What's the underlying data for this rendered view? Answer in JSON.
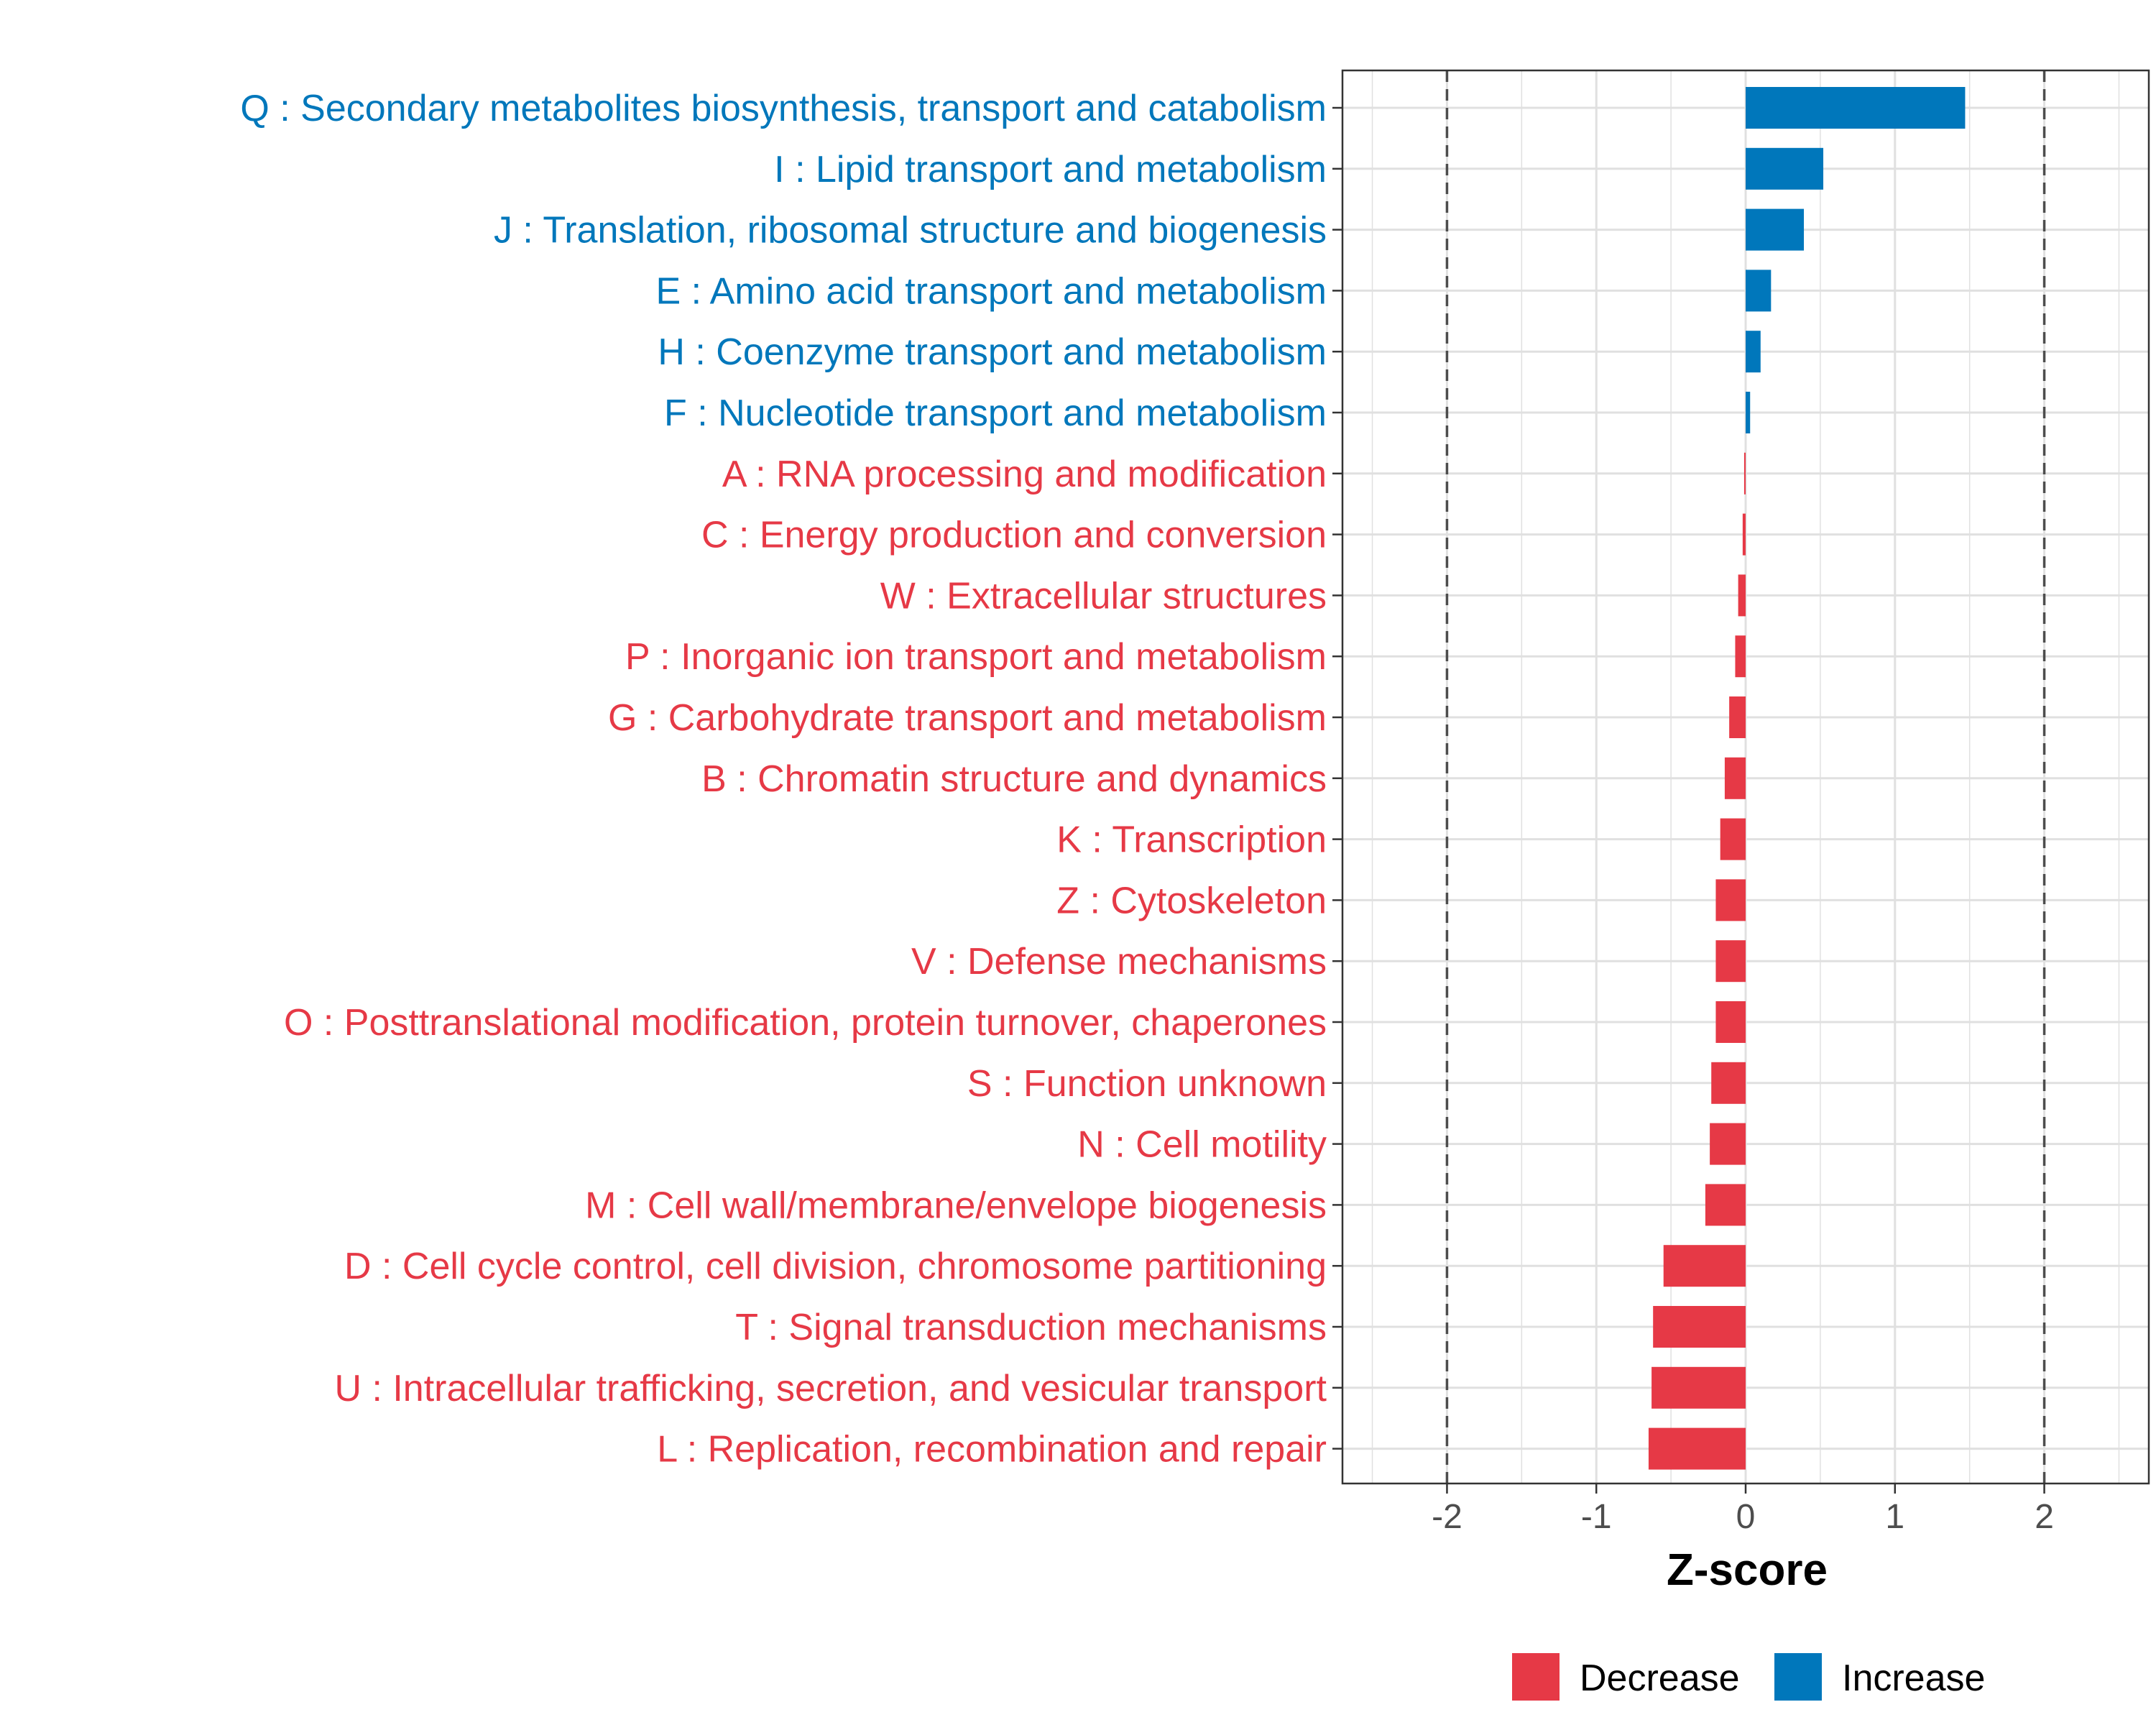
{
  "chart_data": {
    "type": "bar",
    "orientation": "horizontal",
    "title": "",
    "xlabel": "Z-score",
    "ylabel": "",
    "xlim": [
      -2.7,
      2.7
    ],
    "xticks": [
      -2,
      -1,
      0,
      1,
      2
    ],
    "xtick_labels": [
      "-2",
      "-1",
      "0",
      "1",
      "2"
    ],
    "reference_lines": [
      -2,
      2
    ],
    "grid": true,
    "legend_position": "bottom",
    "colors": {
      "Decrease": "#e63946",
      "Increase": "#0077bb"
    },
    "legend": [
      {
        "name": "Decrease",
        "color": "#e63946"
      },
      {
        "name": "Increase",
        "color": "#0077bb"
      }
    ],
    "categories": [
      "Q : Secondary metabolites biosynthesis, transport and catabolism",
      "I : Lipid transport and metabolism",
      "J : Translation, ribosomal structure and biogenesis",
      "E : Amino acid transport and metabolism",
      "H : Coenzyme transport and metabolism",
      "F : Nucleotide transport and metabolism",
      "A : RNA processing and modification",
      "C : Energy production and conversion",
      "W : Extracellular structures",
      "P : Inorganic ion transport and metabolism",
      "G : Carbohydrate transport and metabolism",
      "B : Chromatin structure and dynamics",
      "K : Transcription",
      "Z : Cytoskeleton",
      "V : Defense mechanisms",
      "O : Posttranslational modification, protein turnover, chaperones",
      "S : Function unknown",
      "N : Cell motility",
      "M : Cell wall/membrane/envelope biogenesis",
      "D : Cell cycle control, cell division, chromosome partitioning",
      "T : Signal transduction mechanisms",
      "U : Intracellular trafficking, secretion, and vesicular transport",
      "L : Replication, recombination and repair"
    ],
    "values": [
      1.47,
      0.52,
      0.39,
      0.17,
      0.1,
      0.03,
      -0.01,
      -0.02,
      -0.05,
      -0.07,
      -0.11,
      -0.14,
      -0.17,
      -0.2,
      -0.2,
      -0.2,
      -0.23,
      -0.24,
      -0.27,
      -0.55,
      -0.62,
      -0.63,
      -0.65
    ],
    "groups": [
      "Increase",
      "Increase",
      "Increase",
      "Increase",
      "Increase",
      "Increase",
      "Decrease",
      "Decrease",
      "Decrease",
      "Decrease",
      "Decrease",
      "Decrease",
      "Decrease",
      "Decrease",
      "Decrease",
      "Decrease",
      "Decrease",
      "Decrease",
      "Decrease",
      "Decrease",
      "Decrease",
      "Decrease",
      "Decrease"
    ]
  }
}
